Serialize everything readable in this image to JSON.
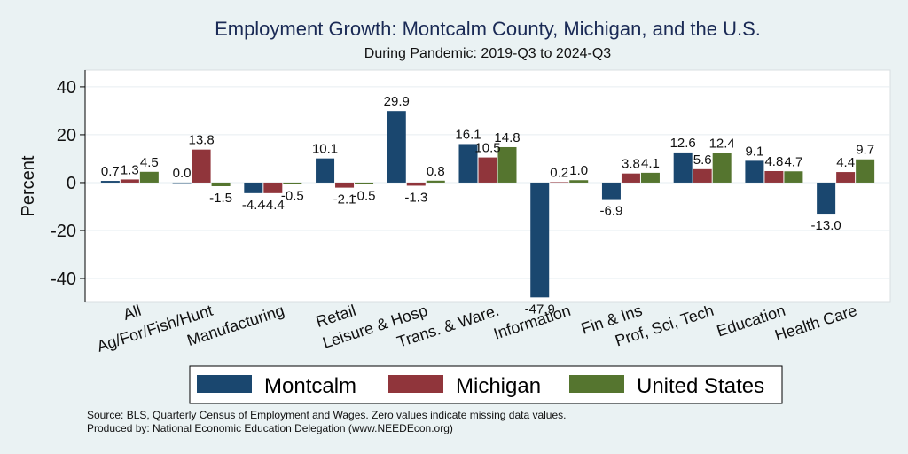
{
  "chart_data": {
    "type": "bar",
    "title": "Employment Growth: Montcalm County, Michigan, and the U.S.",
    "subtitle": "During Pandemic: 2019-Q3 to 2024-Q3",
    "ylabel": "Percent",
    "xlabel": "",
    "ylim": [
      -50,
      47
    ],
    "yticks": [
      40,
      20,
      0,
      -20,
      -40
    ],
    "ytick_labels": [
      "40",
      "20",
      "0",
      "-20",
      "-40"
    ],
    "grid": true,
    "legend_position": "bottom",
    "categories": [
      "All",
      "Ag/For/Fish/Hunt",
      "Manufacturing",
      "Retail",
      "Leisure & Hosp",
      "Trans. & Ware.",
      "Information",
      "Fin & Ins",
      "Prof, Sci, Tech",
      "Education",
      "Health Care"
    ],
    "series": [
      {
        "name": "Montcalm",
        "color": "#1a476f",
        "values": [
          0.7,
          0.0,
          -4.4,
          10.1,
          29.9,
          16.1,
          -47.9,
          -6.9,
          12.6,
          9.1,
          -13.0
        ],
        "labels": [
          "0.7",
          "0.0",
          "-4.4",
          "10.1",
          "29.9",
          "16.1",
          "-47.9",
          "-6.9",
          "12.6",
          "9.1",
          "-13.0"
        ]
      },
      {
        "name": "Michigan",
        "color": "#90353b",
        "values": [
          1.3,
          13.8,
          -4.4,
          -2.1,
          -1.3,
          10.5,
          0.2,
          3.8,
          5.6,
          4.8,
          4.4
        ],
        "labels": [
          "1.3",
          "13.8",
          "-4.4",
          "-2.1",
          "-1.3",
          "10.5",
          "0.2",
          "3.8",
          "5.6",
          "4.8",
          "4.4"
        ]
      },
      {
        "name": "United States",
        "color": "#55752f",
        "values": [
          4.5,
          -1.5,
          -0.5,
          -0.5,
          0.8,
          14.8,
          1.0,
          4.1,
          12.4,
          4.7,
          9.7
        ],
        "labels": [
          "4.5",
          "-1.5",
          "-0.5",
          "-0.5",
          "0.8",
          "14.8",
          "1.0",
          "4.1",
          "12.4",
          "4.7",
          "9.7"
        ]
      }
    ]
  },
  "footer": {
    "source": "Source: BLS, Quarterly Census of Employment and Wages. Zero values indicate missing data values.",
    "produced_by": "Produced by: National Economic Education Delegation (www.NEEDEcon.org)"
  }
}
